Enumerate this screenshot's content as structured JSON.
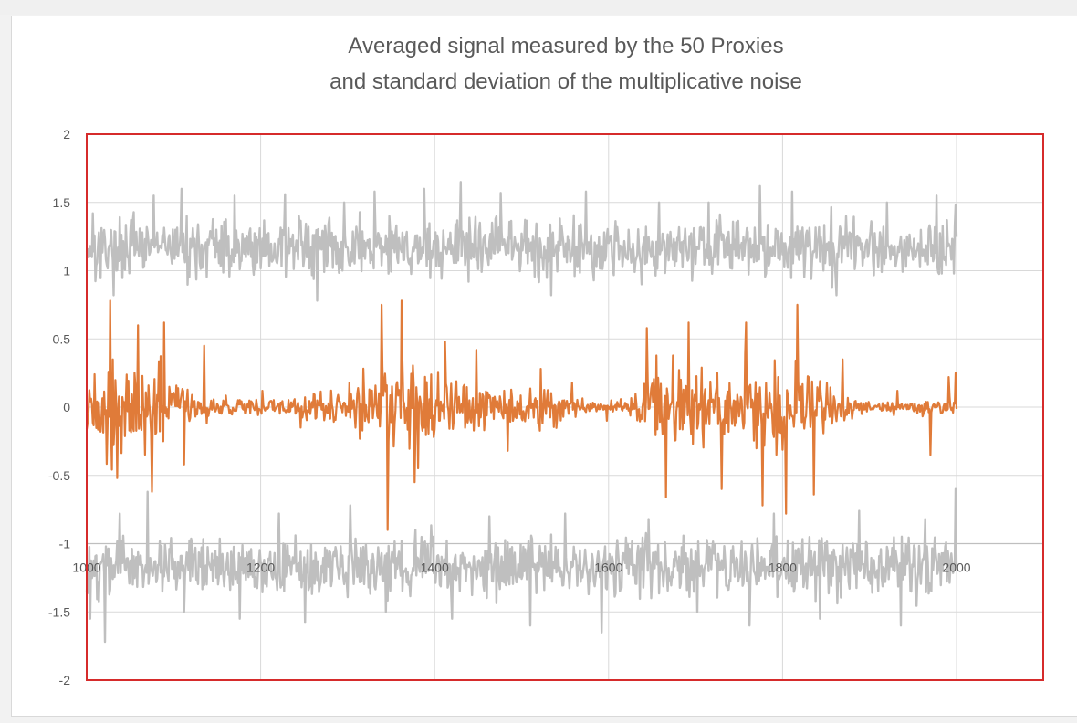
{
  "colors": {
    "frame": "#d62b2b",
    "grid": "#d9d9d9",
    "bounds_series": "#bfbfbf",
    "signal_series": "#e07b39",
    "text": "#595959"
  },
  "chart_data": {
    "type": "line",
    "title_lines": [
      "Averaged signal measured by the 50 Proxies",
      "and standard deviation of the multiplicative noise"
    ],
    "xlabel": "",
    "ylabel": "",
    "xlim": [
      1000,
      2000
    ],
    "ylim": [
      -2,
      2
    ],
    "x_ticks": [
      "1000",
      "1200",
      "1400",
      "1600",
      "1800",
      "2000"
    ],
    "y_ticks": [
      "2",
      "1.5",
      "1",
      "0.5",
      "0",
      "-0.5",
      "-1",
      "-1.5",
      "-2"
    ],
    "grid": true,
    "legend": "none",
    "x_step": 1,
    "series": [
      {
        "role": "upper-noise-band",
        "color": "#bfbfbf",
        "baseline": 1.17,
        "spread": 0.17,
        "spikes": [
          [
            1007,
            1.42
          ],
          [
            1031,
            0.82
          ],
          [
            1077,
            1.55
          ],
          [
            1109,
            1.6
          ],
          [
            1170,
            1.55
          ],
          [
            1228,
            1.56
          ],
          [
            1265,
            0.78
          ],
          [
            1296,
            1.5
          ],
          [
            1331,
            1.58
          ],
          [
            1388,
            1.6
          ],
          [
            1430,
            1.65
          ],
          [
            1476,
            1.57
          ],
          [
            1534,
            0.82
          ],
          [
            1574,
            1.58
          ],
          [
            1638,
            0.9
          ],
          [
            1658,
            1.5
          ],
          [
            1715,
            1.5
          ],
          [
            1774,
            1.62
          ],
          [
            1811,
            1.58
          ],
          [
            1862,
            0.82
          ],
          [
            1920,
            1.5
          ],
          [
            1977,
            1.55
          ],
          [
            1999,
            1.48
          ]
        ]
      },
      {
        "role": "averaged-signal",
        "color": "#e07b39",
        "baseline": 0.0,
        "envelope": [
          [
            1000,
            0.22
          ],
          [
            1030,
            0.45
          ],
          [
            1060,
            0.35
          ],
          [
            1090,
            0.4
          ],
          [
            1120,
            0.2
          ],
          [
            1150,
            0.08
          ],
          [
            1200,
            0.08
          ],
          [
            1250,
            0.1
          ],
          [
            1300,
            0.18
          ],
          [
            1340,
            0.45
          ],
          [
            1370,
            0.5
          ],
          [
            1400,
            0.3
          ],
          [
            1430,
            0.25
          ],
          [
            1460,
            0.2
          ],
          [
            1500,
            0.18
          ],
          [
            1540,
            0.15
          ],
          [
            1570,
            0.08
          ],
          [
            1600,
            0.05
          ],
          [
            1620,
            0.07
          ],
          [
            1650,
            0.4
          ],
          [
            1680,
            0.35
          ],
          [
            1710,
            0.3
          ],
          [
            1740,
            0.35
          ],
          [
            1780,
            0.4
          ],
          [
            1810,
            0.42
          ],
          [
            1840,
            0.25
          ],
          [
            1870,
            0.12
          ],
          [
            1900,
            0.05
          ],
          [
            1940,
            0.06
          ],
          [
            1980,
            0.08
          ],
          [
            2000,
            0.08
          ]
        ],
        "spikes": [
          [
            1027,
            0.78
          ],
          [
            1035,
            -0.52
          ],
          [
            1059,
            0.6
          ],
          [
            1075,
            -0.62
          ],
          [
            1089,
            0.62
          ],
          [
            1112,
            -0.42
          ],
          [
            1135,
            0.45
          ],
          [
            1202,
            0.12
          ],
          [
            1246,
            -0.15
          ],
          [
            1302,
            0.18
          ],
          [
            1339,
            0.75
          ],
          [
            1346,
            -0.9
          ],
          [
            1362,
            0.78
          ],
          [
            1377,
            -0.55
          ],
          [
            1412,
            0.48
          ],
          [
            1448,
            0.42
          ],
          [
            1484,
            -0.32
          ],
          [
            1522,
            0.28
          ],
          [
            1558,
            0.18
          ],
          [
            1598,
            -0.1
          ],
          [
            1644,
            0.58
          ],
          [
            1666,
            -0.66
          ],
          [
            1692,
            0.62
          ],
          [
            1730,
            -0.6
          ],
          [
            1758,
            0.62
          ],
          [
            1777,
            -0.72
          ],
          [
            1804,
            -0.78
          ],
          [
            1817,
            0.75
          ],
          [
            1836,
            -0.64
          ],
          [
            1869,
            0.35
          ],
          [
            1932,
            0.12
          ],
          [
            1970,
            -0.35
          ],
          [
            1991,
            0.22
          ],
          [
            1999,
            0.25
          ]
        ]
      },
      {
        "role": "lower-noise-band",
        "color": "#bfbfbf",
        "baseline": -1.17,
        "spread": 0.17,
        "spikes": [
          [
            1004,
            -1.55
          ],
          [
            1021,
            -1.72
          ],
          [
            1038,
            -0.78
          ],
          [
            1070,
            -0.62
          ],
          [
            1112,
            -1.5
          ],
          [
            1176,
            -1.55
          ],
          [
            1221,
            -0.78
          ],
          [
            1251,
            -1.58
          ],
          [
            1303,
            -0.72
          ],
          [
            1344,
            -1.5
          ],
          [
            1378,
            -0.9
          ],
          [
            1420,
            -1.55
          ],
          [
            1463,
            -0.8
          ],
          [
            1510,
            -1.6
          ],
          [
            1550,
            -0.78
          ],
          [
            1592,
            -1.65
          ],
          [
            1646,
            -0.82
          ],
          [
            1702,
            -1.5
          ],
          [
            1762,
            -1.6
          ],
          [
            1790,
            -0.78
          ],
          [
            1843,
            -1.55
          ],
          [
            1888,
            -0.76
          ],
          [
            1936,
            -1.6
          ],
          [
            1964,
            -0.82
          ],
          [
            1999,
            -0.6
          ]
        ]
      }
    ]
  }
}
